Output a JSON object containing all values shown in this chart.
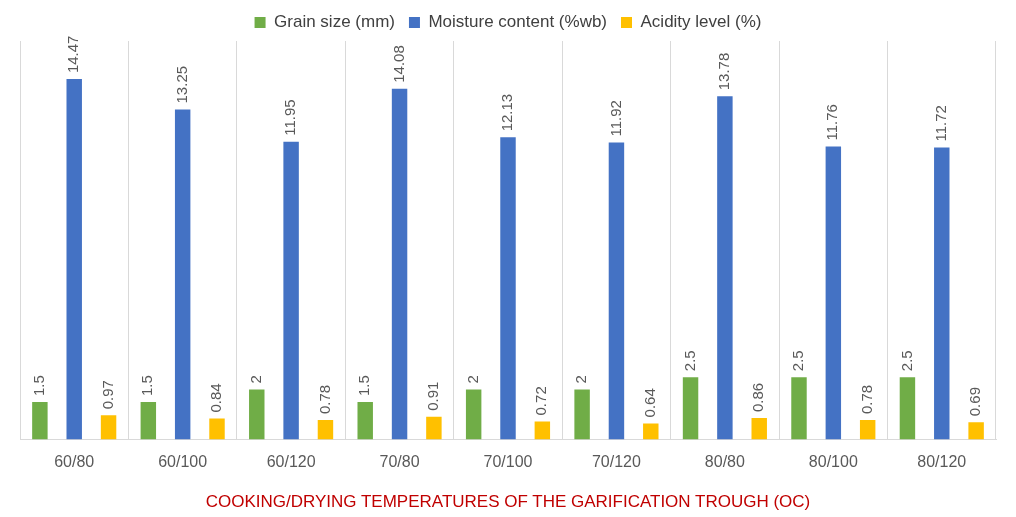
{
  "chart_data": {
    "type": "bar",
    "xlabel": "COOKING/DRYING TEMPERATURES OF THE GARIFICATION TROUGH (OC)",
    "categories": [
      "60/80",
      "60/100",
      "60/120",
      "70/80",
      "70/100",
      "70/120",
      "80/80",
      "80/100",
      "80/120"
    ],
    "series": [
      {
        "name": "Grain size (mm)",
        "color": "#70ad47",
        "values": [
          1.5,
          1.5,
          2,
          1.5,
          2,
          2,
          2.5,
          2.5,
          2.5
        ]
      },
      {
        "name": "Moisture content (%wb)",
        "color": "#4472c4",
        "values": [
          14.47,
          13.25,
          11.95,
          14.08,
          12.13,
          11.92,
          13.78,
          11.76,
          11.72
        ]
      },
      {
        "name": "Acidity level (%)",
        "color": "#ffc000",
        "values": [
          0.97,
          0.84,
          0.78,
          0.91,
          0.72,
          0.64,
          0.86,
          0.78,
          0.69
        ]
      }
    ],
    "data_labels": true,
    "grid": "x",
    "legend": "top"
  }
}
